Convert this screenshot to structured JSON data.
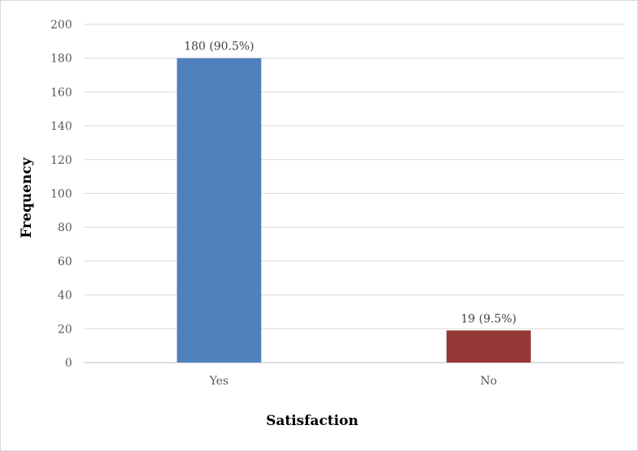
{
  "chart_data": {
    "type": "bar",
    "title": "",
    "xlabel": "Satisfaction",
    "ylabel": "Frequency",
    "categories": [
      "Yes",
      "No"
    ],
    "values": [
      180,
      19
    ],
    "data_labels": [
      "180 (90.5%)",
      "19 (9.5%)"
    ],
    "bar_colors": [
      "#4f81bd",
      "#953735"
    ],
    "ylim": [
      0,
      200
    ],
    "yticks": [
      0,
      20,
      40,
      60,
      80,
      100,
      120,
      140,
      160,
      180,
      200
    ],
    "grid": true,
    "legend": "none"
  }
}
